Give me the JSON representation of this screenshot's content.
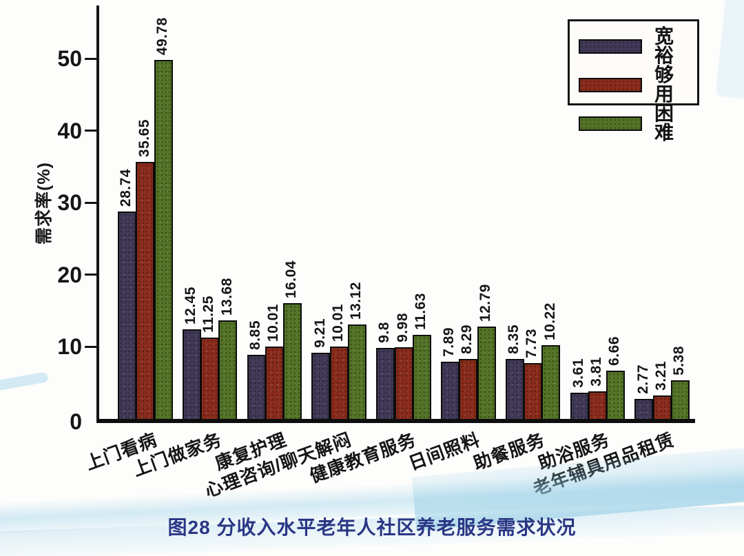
{
  "figure": {
    "caption": "图28 分收入水平老年人社区养老服务需求状况"
  },
  "chart_data": {
    "type": "bar",
    "title": "图28 分收入水平老年人社区养老服务需求状况",
    "xlabel": "",
    "ylabel": "需求率(%)",
    "ylim": [
      0,
      57
    ],
    "yticks": [
      0,
      10,
      20,
      30,
      40,
      50
    ],
    "grid": false,
    "legend_position": "top-right",
    "value_labels": "rotated-90-above-bars",
    "categories": [
      "上门看病",
      "上门做家务",
      "康复护理",
      "心理咨询/聊天解闷",
      "健康教育服务",
      "日间照料",
      "助餐服务",
      "助浴服务",
      "老年辅具用品租赁"
    ],
    "series": [
      {
        "name": "宽裕",
        "color": "#413957",
        "values": [
          28.74,
          12.45,
          8.85,
          9.21,
          9.8,
          7.89,
          8.35,
          3.61,
          2.77
        ]
      },
      {
        "name": "够用",
        "color": "#8b2c1c",
        "values": [
          35.65,
          11.25,
          10.01,
          10.01,
          9.98,
          8.29,
          7.73,
          3.81,
          3.21
        ]
      },
      {
        "name": "困难",
        "color": "#547427",
        "values": [
          49.78,
          13.68,
          16.04,
          13.12,
          11.63,
          12.79,
          10.22,
          6.66,
          5.38
        ]
      }
    ],
    "axis_color": "#141414"
  }
}
